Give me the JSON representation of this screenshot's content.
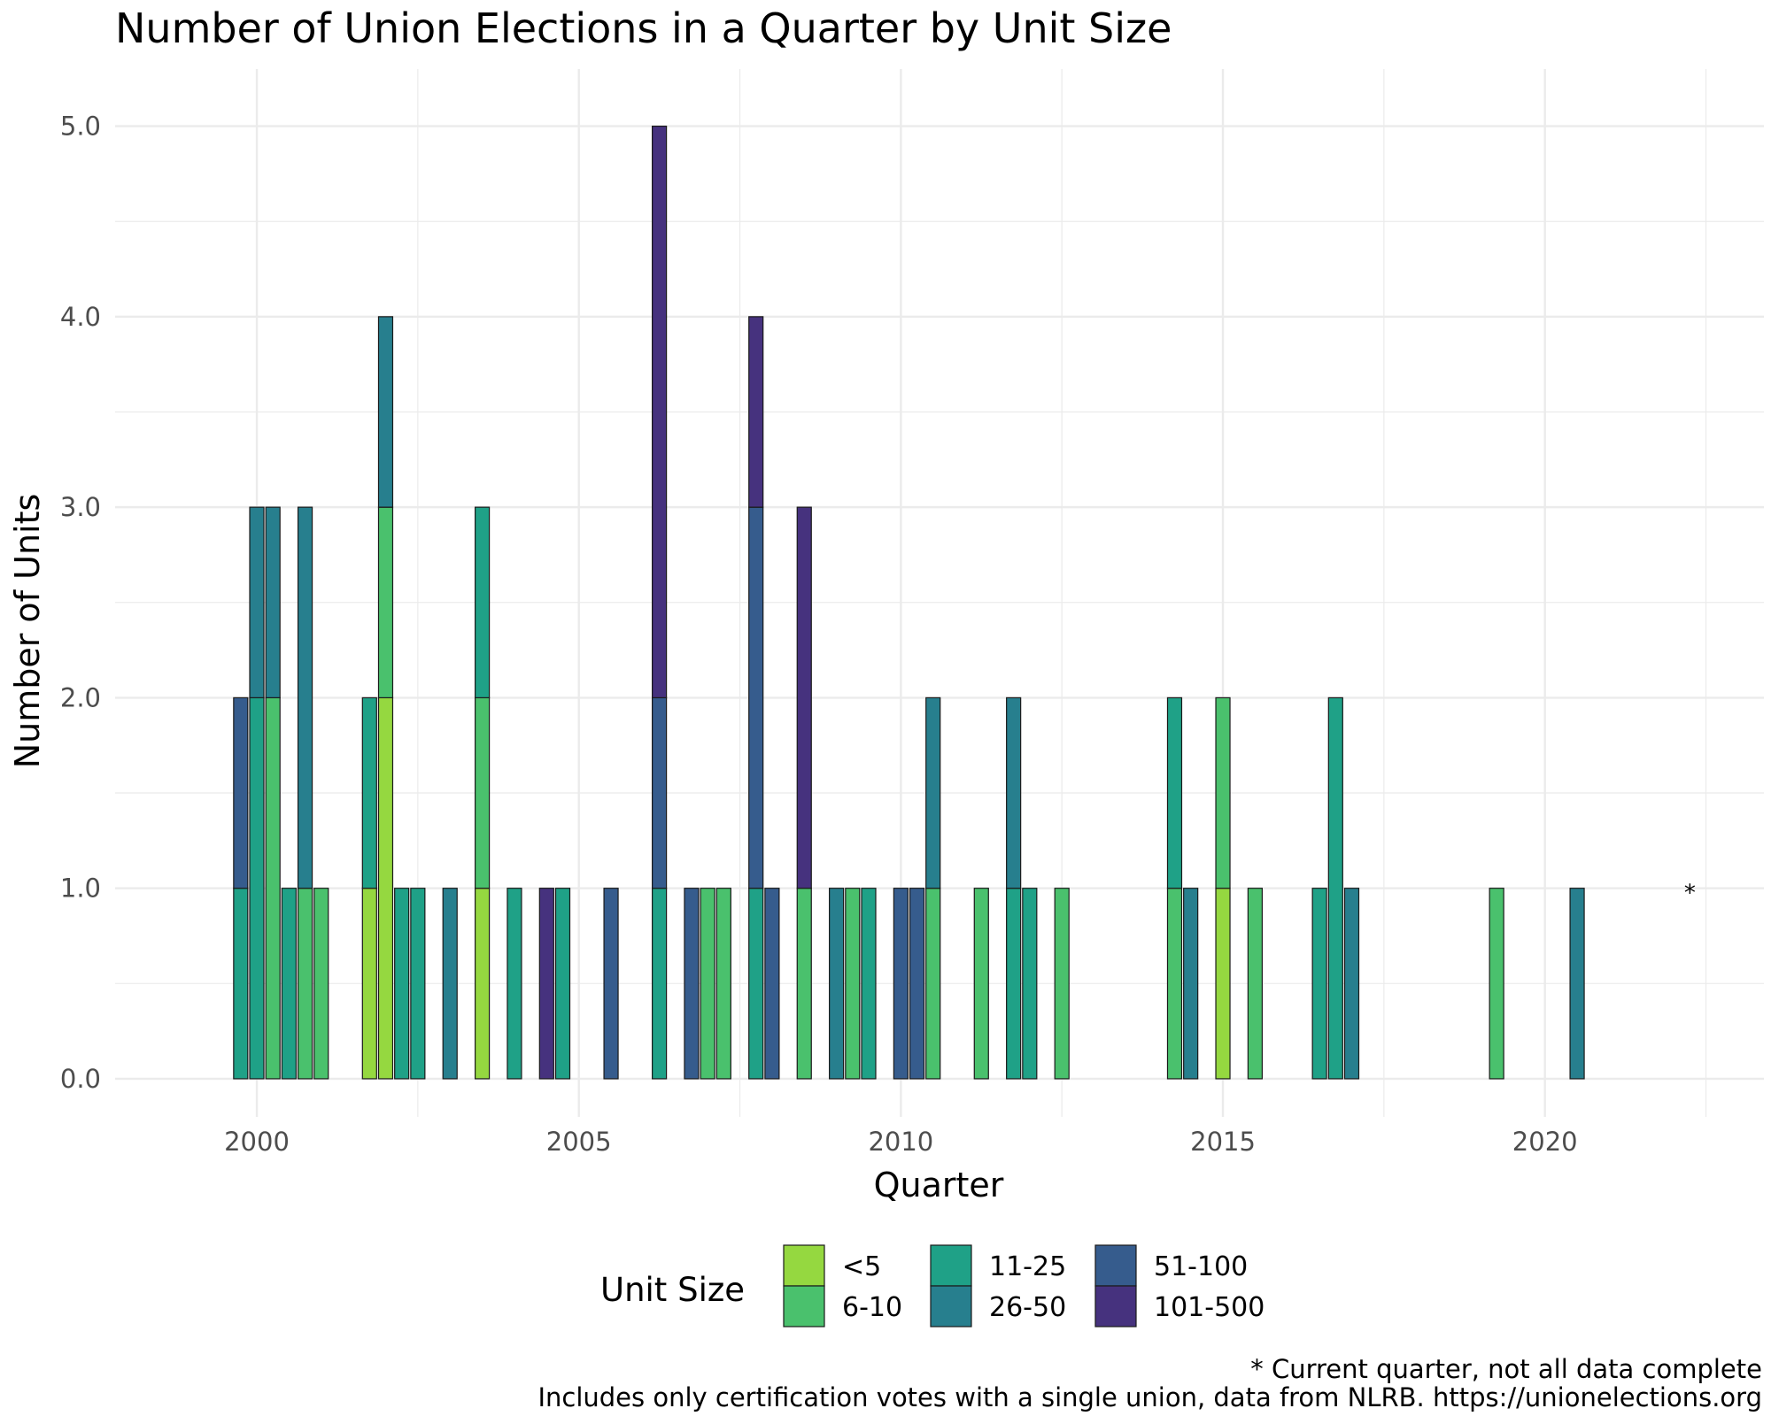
{
  "chart_data": {
    "type": "bar",
    "stacked": true,
    "title": "Number of Union Elections in a Quarter by Unit Size",
    "xlabel": "Quarter",
    "ylabel": "Number of Units",
    "xlim": [
      1997.8,
      2023.4
    ],
    "ylim": [
      -0.2,
      5.3
    ],
    "x_ticks": [
      2000,
      2005,
      2010,
      2015,
      2020
    ],
    "x_tick_labels": [
      "2000",
      "2005",
      "2010",
      "2015",
      "2020"
    ],
    "y_ticks": [
      0,
      1,
      2,
      3,
      4,
      5
    ],
    "y_tick_labels": [
      "0.0",
      "1.0",
      "2.0",
      "3.0",
      "4.0",
      "5.0"
    ],
    "grid": true,
    "legend": {
      "title": "Unit Size",
      "position": "bottom",
      "entries": [
        {
          "key": "lt5",
          "label": "<5",
          "color": "#95d840"
        },
        {
          "key": "6-10",
          "label": "6-10",
          "color": "#4ac16d"
        },
        {
          "key": "11-25",
          "label": "11-25",
          "color": "#1fa187"
        },
        {
          "key": "26-50",
          "label": "26-50",
          "color": "#277f8e"
        },
        {
          "key": "51-100",
          "label": "51-100",
          "color": "#365c8d"
        },
        {
          "key": "101-500",
          "label": "101-500",
          "color": "#46327e"
        }
      ]
    },
    "bar_width_years": 0.22,
    "bars": [
      {
        "x": 1999.75,
        "stack": [
          {
            "size": "11-25",
            "value": 1
          },
          {
            "size": "51-100",
            "value": 1
          }
        ]
      },
      {
        "x": 2000.0,
        "stack": [
          {
            "size": "11-25",
            "value": 2
          },
          {
            "size": "26-50",
            "value": 1
          }
        ]
      },
      {
        "x": 2000.25,
        "stack": [
          {
            "size": "6-10",
            "value": 2
          },
          {
            "size": "26-50",
            "value": 1
          }
        ]
      },
      {
        "x": 2000.5,
        "stack": [
          {
            "size": "11-25",
            "value": 1
          }
        ]
      },
      {
        "x": 2000.75,
        "stack": [
          {
            "size": "6-10",
            "value": 1
          },
          {
            "size": "26-50",
            "value": 2
          }
        ]
      },
      {
        "x": 2001.0,
        "stack": [
          {
            "size": "6-10",
            "value": 1
          }
        ]
      },
      {
        "x": 2001.75,
        "stack": [
          {
            "size": "lt5",
            "value": 1
          },
          {
            "size": "11-25",
            "value": 1
          }
        ]
      },
      {
        "x": 2002.0,
        "stack": [
          {
            "size": "lt5",
            "value": 2
          },
          {
            "size": "6-10",
            "value": 1
          },
          {
            "size": "26-50",
            "value": 1
          }
        ]
      },
      {
        "x": 2002.25,
        "stack": [
          {
            "size": "11-25",
            "value": 1
          }
        ]
      },
      {
        "x": 2002.5,
        "stack": [
          {
            "size": "11-25",
            "value": 1
          }
        ]
      },
      {
        "x": 2003.0,
        "stack": [
          {
            "size": "26-50",
            "value": 1
          }
        ]
      },
      {
        "x": 2003.5,
        "stack": [
          {
            "size": "lt5",
            "value": 1
          },
          {
            "size": "6-10",
            "value": 1
          },
          {
            "size": "11-25",
            "value": 1
          }
        ]
      },
      {
        "x": 2004.0,
        "stack": [
          {
            "size": "11-25",
            "value": 1
          }
        ]
      },
      {
        "x": 2004.5,
        "stack": [
          {
            "size": "101-500",
            "value": 1
          }
        ]
      },
      {
        "x": 2004.75,
        "stack": [
          {
            "size": "11-25",
            "value": 1
          }
        ]
      },
      {
        "x": 2005.5,
        "stack": [
          {
            "size": "51-100",
            "value": 1
          }
        ]
      },
      {
        "x": 2006.25,
        "stack": [
          {
            "size": "11-25",
            "value": 1
          },
          {
            "size": "51-100",
            "value": 1
          },
          {
            "size": "101-500",
            "value": 3
          }
        ]
      },
      {
        "x": 2006.75,
        "stack": [
          {
            "size": "51-100",
            "value": 1
          }
        ]
      },
      {
        "x": 2007.0,
        "stack": [
          {
            "size": "6-10",
            "value": 1
          }
        ]
      },
      {
        "x": 2007.25,
        "stack": [
          {
            "size": "6-10",
            "value": 1
          }
        ]
      },
      {
        "x": 2007.75,
        "stack": [
          {
            "size": "11-25",
            "value": 1
          },
          {
            "size": "51-100",
            "value": 2
          },
          {
            "size": "101-500",
            "value": 1
          }
        ]
      },
      {
        "x": 2008.0,
        "stack": [
          {
            "size": "51-100",
            "value": 1
          }
        ]
      },
      {
        "x": 2008.5,
        "stack": [
          {
            "size": "6-10",
            "value": 1
          },
          {
            "size": "101-500",
            "value": 2
          }
        ]
      },
      {
        "x": 2009.0,
        "stack": [
          {
            "size": "26-50",
            "value": 1
          }
        ]
      },
      {
        "x": 2009.25,
        "stack": [
          {
            "size": "6-10",
            "value": 1
          }
        ]
      },
      {
        "x": 2009.5,
        "stack": [
          {
            "size": "11-25",
            "value": 1
          }
        ]
      },
      {
        "x": 2010.0,
        "stack": [
          {
            "size": "51-100",
            "value": 1
          }
        ]
      },
      {
        "x": 2010.25,
        "stack": [
          {
            "size": "51-100",
            "value": 1
          }
        ]
      },
      {
        "x": 2010.5,
        "stack": [
          {
            "size": "6-10",
            "value": 1
          },
          {
            "size": "26-50",
            "value": 1
          }
        ]
      },
      {
        "x": 2011.25,
        "stack": [
          {
            "size": "6-10",
            "value": 1
          }
        ]
      },
      {
        "x": 2011.75,
        "stack": [
          {
            "size": "11-25",
            "value": 1
          },
          {
            "size": "26-50",
            "value": 1
          }
        ]
      },
      {
        "x": 2012.0,
        "stack": [
          {
            "size": "11-25",
            "value": 1
          }
        ]
      },
      {
        "x": 2012.5,
        "stack": [
          {
            "size": "6-10",
            "value": 1
          }
        ]
      },
      {
        "x": 2014.25,
        "stack": [
          {
            "size": "6-10",
            "value": 1
          },
          {
            "size": "11-25",
            "value": 1
          }
        ]
      },
      {
        "x": 2014.5,
        "stack": [
          {
            "size": "26-50",
            "value": 1
          }
        ]
      },
      {
        "x": 2015.0,
        "stack": [
          {
            "size": "lt5",
            "value": 1
          },
          {
            "size": "6-10",
            "value": 1
          }
        ]
      },
      {
        "x": 2015.5,
        "stack": [
          {
            "size": "6-10",
            "value": 1
          }
        ]
      },
      {
        "x": 2016.5,
        "stack": [
          {
            "size": "11-25",
            "value": 1
          }
        ]
      },
      {
        "x": 2016.75,
        "stack": [
          {
            "size": "11-25",
            "value": 2
          }
        ]
      },
      {
        "x": 2017.0,
        "stack": [
          {
            "size": "26-50",
            "value": 1
          }
        ]
      },
      {
        "x": 2019.25,
        "stack": [
          {
            "size": "6-10",
            "value": 1
          }
        ]
      },
      {
        "x": 2020.5,
        "stack": [
          {
            "size": "26-50",
            "value": 1
          }
        ]
      }
    ],
    "annotation": {
      "x": 2022.25,
      "y": 1.0,
      "text": "*"
    },
    "captions": [
      "* Current quarter, not all data complete",
      "Includes only certification votes with a single union, data from NLRB. https://unionelections.org"
    ]
  }
}
